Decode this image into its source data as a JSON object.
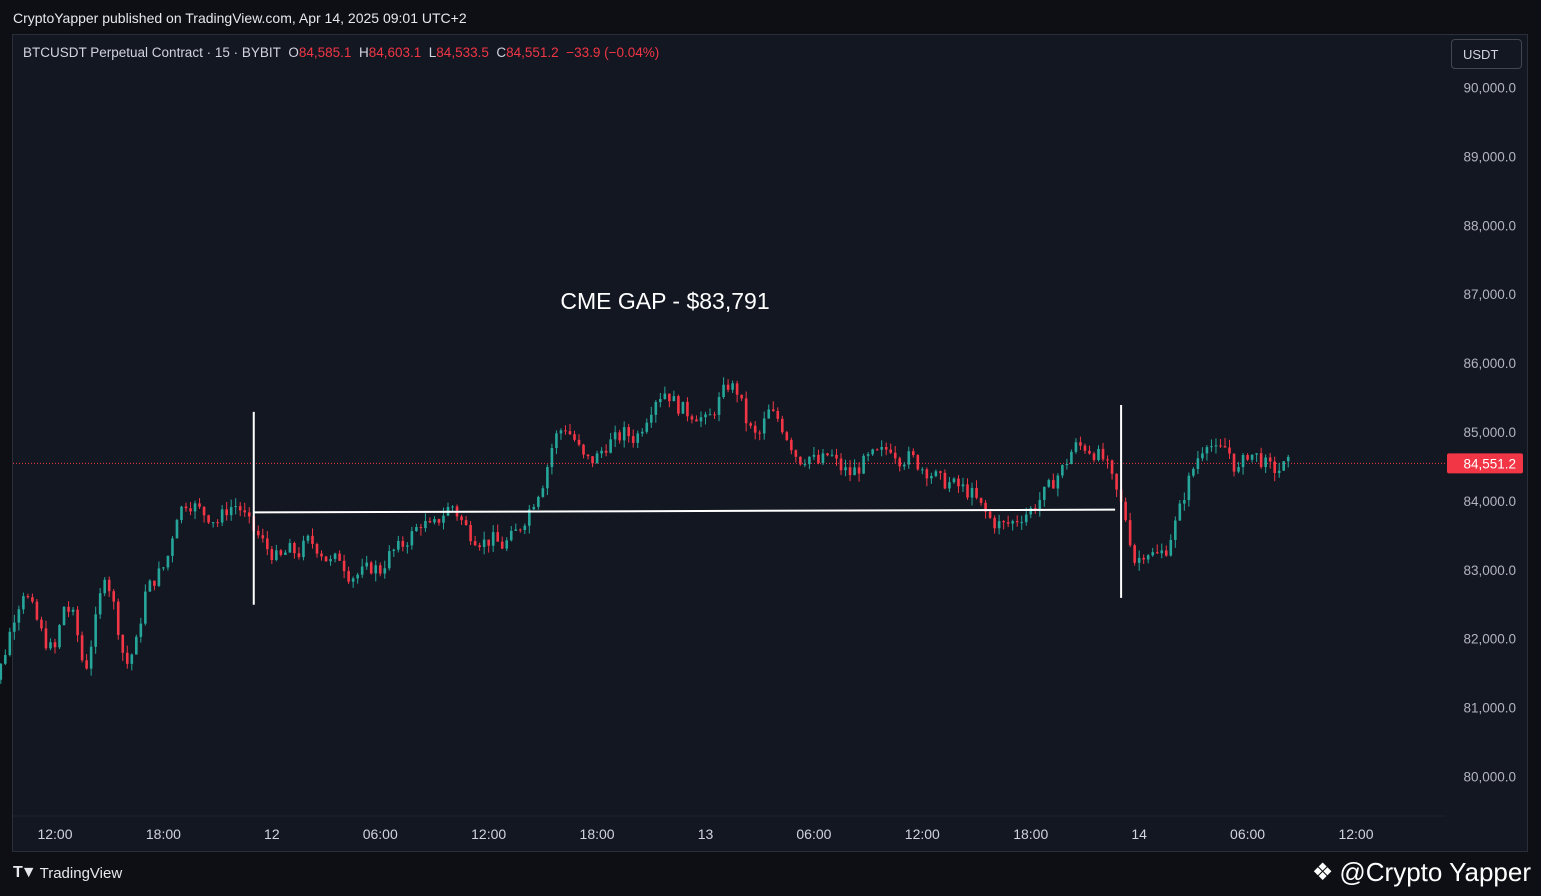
{
  "header": {
    "published": "CryptoYapper published on TradingView.com, Apr 14, 2025 09:01 UTC+2"
  },
  "legend": {
    "symbol": "BTCUSDT Perpetual Contract · 15 · BYBIT",
    "o_label": "O",
    "o_value": "84,585.1",
    "h_label": "H",
    "h_value": "84,603.1",
    "l_label": "L",
    "l_value": "84,533.5",
    "c_label": "C",
    "c_value": "84,551.2",
    "change": "−33.9 (−0.04%)"
  },
  "currency_button": "USDT",
  "footer": {
    "brand": "TradingView",
    "watermark": "@Crypto Yapper"
  },
  "colors": {
    "up": "#26a69a",
    "down": "#f23645",
    "background": "#131722",
    "price_line": "#f23645"
  },
  "chart_data": {
    "type": "candlestick",
    "title": "",
    "annotation": "CME GAP - $83,791",
    "cme_gap_level": 83791,
    "last_price": 84551.2,
    "last_price_label": "84,551.2",
    "ylim": [
      79500,
      90400
    ],
    "y_ticks": [
      {
        "value": 90000,
        "label": "90,000.0"
      },
      {
        "value": 89000,
        "label": "89,000.0"
      },
      {
        "value": 88000,
        "label": "88,000.0"
      },
      {
        "value": 87000,
        "label": "87,000.0"
      },
      {
        "value": 86000,
        "label": "86,000.0"
      },
      {
        "value": 85000,
        "label": "85,000.0"
      },
      {
        "value": 84000,
        "label": "84,000.0"
      },
      {
        "value": 83000,
        "label": "83,000.0"
      },
      {
        "value": 82000,
        "label": "82,000.0"
      },
      {
        "value": 81000,
        "label": "81,000.0"
      },
      {
        "value": 80000,
        "label": "80,000.0"
      }
    ],
    "x_start": "Apr 11 2025 08:00",
    "x_end": "Apr 14 2025 13:00",
    "x_ticks": [
      {
        "time": "Apr 11 12:00",
        "label": "12:00"
      },
      {
        "time": "Apr 11 18:00",
        "label": "18:00"
      },
      {
        "time": "Apr 12 00:00",
        "label": "12"
      },
      {
        "time": "Apr 12 06:00",
        "label": "06:00"
      },
      {
        "time": "Apr 12 12:00",
        "label": "12:00"
      },
      {
        "time": "Apr 12 18:00",
        "label": "18:00"
      },
      {
        "time": "Apr 13 00:00",
        "label": "13"
      },
      {
        "time": "Apr 13 06:00",
        "label": "06:00"
      },
      {
        "time": "Apr 13 12:00",
        "label": "12:00"
      },
      {
        "time": "Apr 13 18:00",
        "label": "18:00"
      },
      {
        "time": "Apr 14 00:00",
        "label": "14"
      },
      {
        "time": "Apr 14 06:00",
        "label": "06:00"
      },
      {
        "time": "Apr 14 12:00",
        "label": "12:00"
      }
    ],
    "gap_markers": [
      {
        "time": "Apr 11 23:00",
        "from": 82500,
        "to": 85300
      },
      {
        "time": "Apr 13 23:00",
        "from": 82600,
        "to": 85400
      }
    ],
    "gap_line": {
      "from_time": "Apr 11 23:00",
      "to_time": "Apr 13 23:00",
      "from_value": 83840,
      "to_value": 83880
    },
    "first_candle": "Apr 11 08:00",
    "interval_minutes": 15,
    "price_path": [
      81200,
      81300,
      81700,
      82300,
      82700,
      82400,
      82000,
      81800,
      82500,
      82300,
      81500,
      82200,
      83000,
      82400,
      81600,
      81900,
      82700,
      82900,
      83100,
      83800,
      84000,
      83900,
      83800,
      83700,
      83900,
      83950,
      83700,
      83500,
      83300,
      83150,
      83300,
      83250,
      83450,
      83300,
      83100,
      83200,
      82900,
      82950,
      83050,
      83000,
      83250,
      83350,
      83500,
      83700,
      83600,
      83800,
      83950,
      83700,
      83500,
      83400,
      83450,
      83350,
      83500,
      83700,
      84000,
      84300,
      84900,
      85100,
      84900,
      84600,
      84600,
      84800,
      84900,
      85000,
      84900,
      85200,
      85500,
      85600,
      85400,
      85300,
      85250,
      85150,
      85400,
      85700,
      85600,
      85100,
      84900,
      85300,
      85200,
      84900,
      84600,
      84650,
      84550,
      84700,
      84500,
      84400,
      84500,
      84650,
      84700,
      84800,
      84600,
      84650,
      84500,
      84400,
      84300,
      84250,
      84200,
      84100,
      83900,
      83700,
      83650,
      83700,
      83800,
      83900,
      84100,
      84300,
      84500,
      84800,
      84800,
      84700,
      84600,
      84200,
      83800,
      83100,
      83300,
      83200,
      83300,
      83700,
      84200,
      84600,
      84900,
      84700,
      84800,
      84400,
      84700,
      84650,
      84500,
      84450,
      84550
    ]
  }
}
